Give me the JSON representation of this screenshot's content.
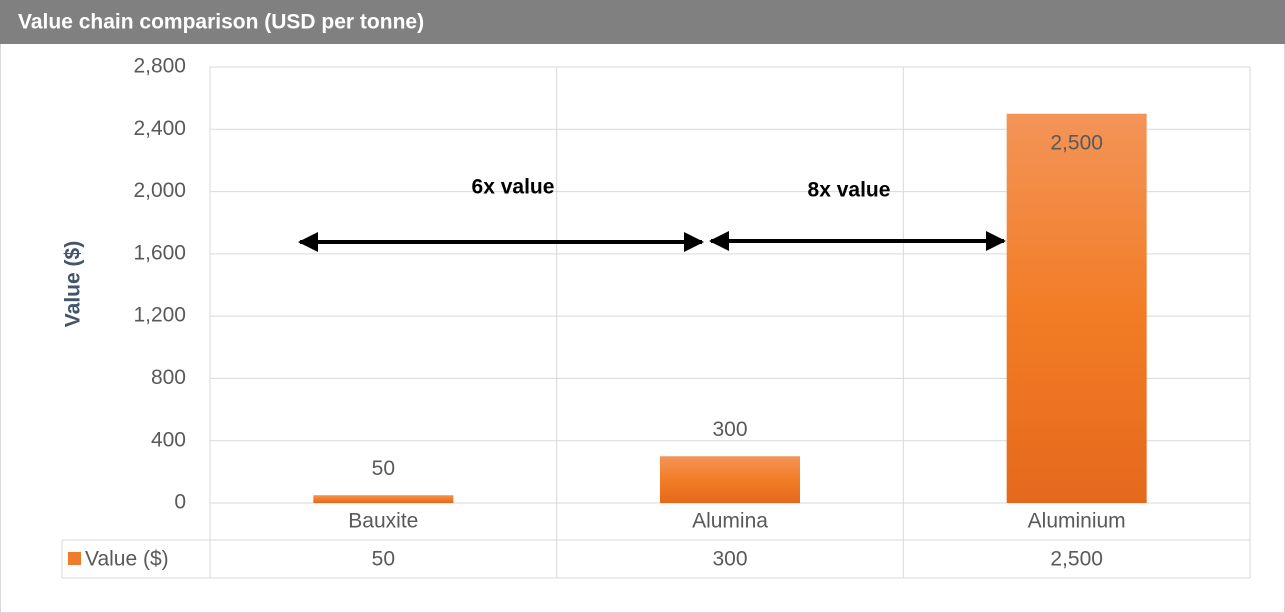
{
  "chart_data": {
    "type": "bar",
    "title": "Value chain comparison (USD per tonne)",
    "y_label": "Value ($)",
    "categories": [
      "Bauxite",
      "Alumina",
      "Aluminium"
    ],
    "series": [
      {
        "name": "Value ($)",
        "color": "#f07b2a",
        "values": [
          50,
          300,
          2500
        ],
        "value_labels": [
          "50",
          "300",
          "2,500"
        ]
      }
    ],
    "ylim": [
      0,
      2800
    ],
    "yticks": [
      0,
      {
        "value": 400,
        "label": "400"
      },
      {
        "value": 800,
        "label": "800"
      },
      {
        "value": 1200,
        "label": "1,200"
      },
      {
        "value": 1600,
        "label": "1,600"
      },
      {
        "value": 2000,
        "label": "2,000"
      },
      {
        "value": 2400,
        "label": "2,400"
      },
      {
        "value": 2800,
        "label": "2,800"
      }
    ],
    "grid": true,
    "annotations": [
      "6x value",
      "8x value"
    ]
  }
}
